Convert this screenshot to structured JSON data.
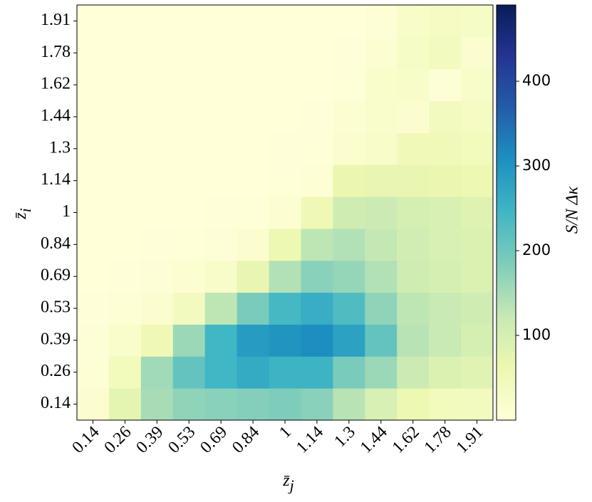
{
  "chart_data": {
    "type": "heatmap",
    "x_label": "z̄_j",
    "y_label": "z̄_i",
    "colorbar_label": "S/N  Δκ",
    "x": [
      "0.14",
      "0.26",
      "0.39",
      "0.53",
      "0.69",
      "0.84",
      "1",
      "1.14",
      "1.3",
      "1.44",
      "1.62",
      "1.78",
      "1.91"
    ],
    "y": [
      "0.14",
      "0.26",
      "0.39",
      "0.53",
      "0.69",
      "0.84",
      "1",
      "1.14",
      "1.3",
      "1.44",
      "1.62",
      "1.78",
      "1.91"
    ],
    "z": [
      [
        15,
        75,
        150,
        170,
        175,
        180,
        185,
        175,
        135,
        95,
        60,
        45,
        40
      ],
      [
        8,
        45,
        155,
        210,
        245,
        265,
        250,
        250,
        190,
        160,
        115,
        90,
        80
      ],
      [
        5,
        20,
        55,
        160,
        245,
        290,
        300,
        310,
        280,
        210,
        135,
        120,
        100
      ],
      [
        2,
        8,
        15,
        40,
        130,
        190,
        240,
        260,
        230,
        170,
        130,
        120,
        110
      ],
      [
        1,
        2,
        5,
        10,
        25,
        70,
        140,
        175,
        165,
        140,
        110,
        100,
        90
      ],
      [
        1,
        1,
        2,
        3,
        6,
        15,
        60,
        130,
        140,
        125,
        105,
        95,
        90
      ],
      [
        1,
        1,
        1,
        1,
        2,
        4,
        10,
        55,
        110,
        115,
        100,
        95,
        85
      ],
      [
        1,
        1,
        1,
        1,
        1,
        1,
        4,
        8,
        65,
        70,
        70,
        65,
        60
      ],
      [
        1,
        1,
        1,
        1,
        1,
        1,
        2,
        4,
        15,
        25,
        50,
        50,
        45
      ],
      [
        1,
        1,
        1,
        1,
        1,
        1,
        1,
        2,
        10,
        20,
        15,
        40,
        35
      ],
      [
        1,
        1,
        1,
        1,
        1,
        1,
        1,
        1,
        3,
        20,
        25,
        5,
        25
      ],
      [
        1,
        1,
        1,
        1,
        1,
        1,
        1,
        1,
        2,
        10,
        30,
        40,
        15
      ],
      [
        1,
        1,
        1,
        1,
        1,
        1,
        1,
        1,
        1,
        5,
        25,
        35,
        30
      ]
    ],
    "colormap": "YlGnBu",
    "clim": [
      0,
      490
    ],
    "cticks": [
      100,
      200,
      300,
      400
    ]
  }
}
